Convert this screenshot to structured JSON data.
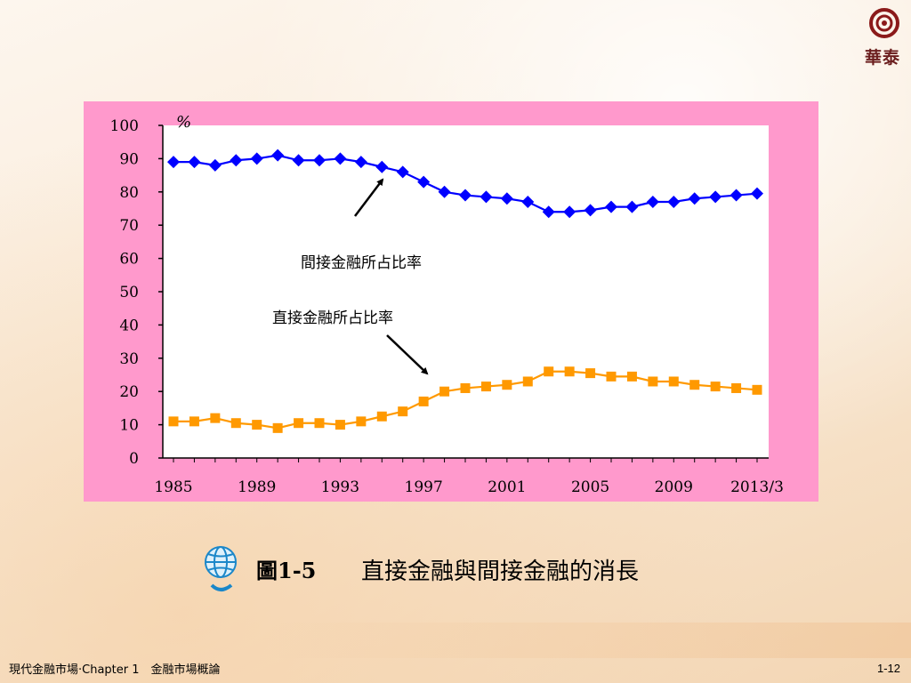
{
  "logo": {
    "text": "華泰"
  },
  "caption": {
    "label": "圖1-5",
    "title": "直接金融與間接金融的消長"
  },
  "footer": {
    "left": "現代金融市場‧Chapter 1　金融市場概論",
    "page": "1-12"
  },
  "colors": {
    "indirect": "#0000ff",
    "direct": "#ff9900",
    "frame": "#ff99cc",
    "logo": "#8b1a1a"
  },
  "chart_data": {
    "type": "line",
    "unit_label": "%",
    "x": [
      "1985",
      "1986",
      "1987",
      "1988",
      "1989",
      "1990",
      "1991",
      "1992",
      "1993",
      "1994",
      "1995",
      "1996",
      "1997",
      "1998",
      "1999",
      "2000",
      "2001",
      "2002",
      "2003",
      "2004",
      "2005",
      "2006",
      "2007",
      "2008",
      "2009",
      "2010",
      "2011",
      "2012",
      "2013/3"
    ],
    "x_tick_labels": [
      "1985",
      "1989",
      "1993",
      "1997",
      "2001",
      "2005",
      "2009",
      "2013/3"
    ],
    "ylim": [
      0,
      100
    ],
    "y_ticks": [
      "0",
      "10",
      "20",
      "30",
      "40",
      "50",
      "60",
      "70",
      "80",
      "90",
      "100"
    ],
    "series": [
      {
        "name": "間接金融所占比率",
        "marker": "diamond",
        "values": [
          89,
          89,
          88,
          89.5,
          90,
          91,
          89.5,
          89.5,
          90,
          89,
          87.5,
          86,
          83,
          80,
          79,
          78.5,
          78,
          77,
          74,
          74,
          74.5,
          75.5,
          75.5,
          77,
          77,
          78,
          78.5,
          79,
          79.5
        ]
      },
      {
        "name": "直接金融所占比率",
        "marker": "square",
        "values": [
          11,
          11,
          12,
          10.5,
          10,
          9,
          10.5,
          10.5,
          10,
          11,
          12.5,
          14,
          17,
          20,
          21,
          21.5,
          22,
          23,
          26,
          26,
          25.5,
          24.5,
          24.5,
          23,
          23,
          22,
          21.5,
          21,
          20.5
        ]
      }
    ],
    "annotations": [
      "間接金融所占比率",
      "直接金融所占比率"
    ],
    "grid": false
  }
}
